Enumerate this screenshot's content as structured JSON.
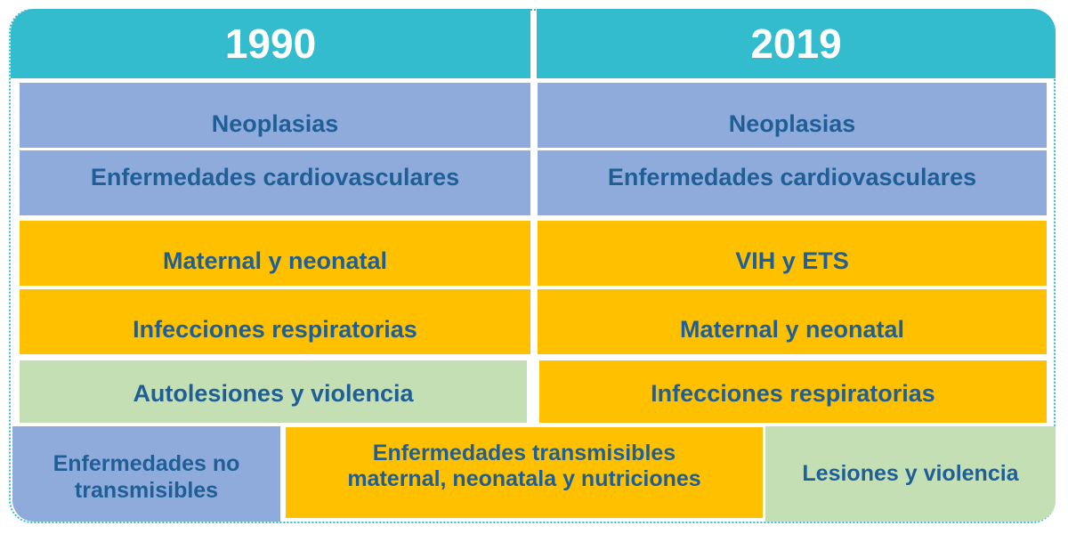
{
  "columns": [
    {
      "year": "1990",
      "rows": [
        "Neoplasias",
        "Enfermedades cardiovasculares",
        "Maternal y neonatal",
        "Infecciones respiratorias",
        "Autolesiones y violencia"
      ]
    },
    {
      "year": "2019",
      "rows": [
        "Neoplasias",
        "Enfermedades cardiovasculares",
        "VIH y ETS",
        "Maternal y neonatal",
        "Infecciones respiratorias"
      ]
    }
  ],
  "legend": {
    "non_communicable": "Enfermedades no transmisibles",
    "communicable": "Enfermedades transmisibles maternal, neonatala y nutriciones",
    "injuries": "Lesiones y violencia"
  },
  "colors": {
    "header": "#33bccd",
    "non_communicable": "#8fabdc",
    "communicable": "#ffc000",
    "injuries": "#c5dfb5",
    "text": "#1f5f96"
  }
}
